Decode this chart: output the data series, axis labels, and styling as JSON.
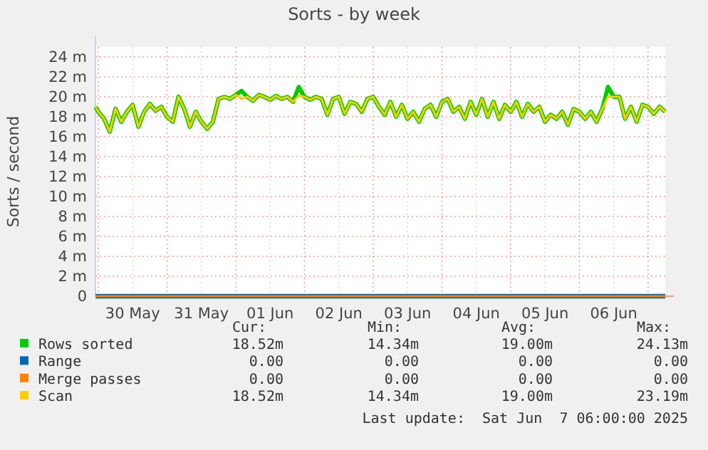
{
  "chart_data": {
    "type": "line",
    "title": "Sorts - by week",
    "ylabel": "Sorts / second",
    "x": [
      "2025-05-29T23:00",
      "2025-05-30T00:00",
      "2025-05-30T02:00",
      "2025-05-30T04:00",
      "2025-05-30T06:00",
      "2025-05-30T08:00",
      "2025-05-30T10:00",
      "2025-05-30T12:00",
      "2025-05-30T14:00",
      "2025-05-30T16:00",
      "2025-05-30T18:00",
      "2025-05-30T20:00",
      "2025-05-30T22:00",
      "2025-05-31T00:00",
      "2025-05-31T02:00",
      "2025-05-31T04:00",
      "2025-05-31T06:00",
      "2025-05-31T08:00",
      "2025-05-31T10:00",
      "2025-05-31T12:00",
      "2025-05-31T14:00",
      "2025-05-31T16:00",
      "2025-05-31T18:00",
      "2025-05-31T20:00",
      "2025-05-31T22:00",
      "2025-06-01T00:00",
      "2025-06-01T02:00",
      "2025-06-01T04:00",
      "2025-06-01T06:00",
      "2025-06-01T08:00",
      "2025-06-01T10:00",
      "2025-06-01T12:00",
      "2025-06-01T14:00",
      "2025-06-01T16:00",
      "2025-06-01T18:00",
      "2025-06-01T20:00",
      "2025-06-01T22:00",
      "2025-06-02T00:00",
      "2025-06-02T02:00",
      "2025-06-02T04:00",
      "2025-06-02T06:00",
      "2025-06-02T08:00",
      "2025-06-02T10:00",
      "2025-06-02T12:00",
      "2025-06-02T14:00",
      "2025-06-02T16:00",
      "2025-06-02T18:00",
      "2025-06-02T20:00",
      "2025-06-02T22:00",
      "2025-06-03T00:00",
      "2025-06-03T02:00",
      "2025-06-03T04:00",
      "2025-06-03T06:00",
      "2025-06-03T08:00",
      "2025-06-03T10:00",
      "2025-06-03T12:00",
      "2025-06-03T14:00",
      "2025-06-03T16:00",
      "2025-06-03T18:00",
      "2025-06-03T20:00",
      "2025-06-03T22:00",
      "2025-06-04T00:00",
      "2025-06-04T02:00",
      "2025-06-04T04:00",
      "2025-06-04T06:00",
      "2025-06-04T08:00",
      "2025-06-04T10:00",
      "2025-06-04T12:00",
      "2025-06-04T14:00",
      "2025-06-04T16:00",
      "2025-06-04T18:00",
      "2025-06-04T20:00",
      "2025-06-04T22:00",
      "2025-06-05T00:00",
      "2025-06-05T02:00",
      "2025-06-05T04:00",
      "2025-06-05T06:00",
      "2025-06-05T08:00",
      "2025-06-05T10:00",
      "2025-06-05T12:00",
      "2025-06-05T14:00",
      "2025-06-05T16:00",
      "2025-06-05T18:00",
      "2025-06-05T20:00",
      "2025-06-05T22:00",
      "2025-06-06T00:00",
      "2025-06-06T02:00",
      "2025-06-06T04:00",
      "2025-06-06T06:00",
      "2025-06-06T08:00",
      "2025-06-06T10:00",
      "2025-06-06T12:00",
      "2025-06-06T14:00",
      "2025-06-06T16:00",
      "2025-06-06T18:00",
      "2025-06-06T20:00",
      "2025-06-06T22:00",
      "2025-06-07T00:00",
      "2025-06-07T02:00",
      "2025-06-07T04:00",
      "2025-06-07T06:00"
    ],
    "series": [
      {
        "name": "Rows sorted",
        "color": "#00cc00",
        "values": [
          19,
          18.5,
          17.8,
          16.5,
          18.8,
          17.5,
          18.5,
          19.2,
          17,
          18.5,
          19.3,
          18.6,
          19,
          18,
          17.5,
          20,
          18.8,
          17,
          18.5,
          17.5,
          16.8,
          17.5,
          19.8,
          20,
          19.8,
          20.2,
          20.6,
          20,
          19.6,
          20.2,
          20,
          19.7,
          20.1,
          19.8,
          20,
          19.5,
          21,
          20,
          19.7,
          20,
          19.8,
          18.2,
          19.8,
          20,
          18.3,
          19.5,
          19.3,
          18.5,
          19.8,
          20,
          19,
          18.2,
          19.5,
          18,
          19.2,
          17.8,
          18.5,
          17.5,
          18.8,
          19.2,
          18,
          19.5,
          19.8,
          18.5,
          19,
          17.8,
          19.5,
          18.2,
          19.8,
          18,
          19.5,
          17.8,
          19.2,
          18.5,
          19.5,
          18,
          19.3,
          18.5,
          19,
          17.5,
          18.2,
          17.8,
          18.5,
          17.2,
          18.8,
          18.5,
          17.8,
          18.5,
          17.5,
          18.8,
          21,
          20,
          20,
          17.8,
          19,
          17.5,
          19.2,
          19,
          18.3,
          19,
          18.5
        ]
      },
      {
        "name": "Range",
        "color": "#0066b3",
        "values": [
          0,
          0,
          0,
          0,
          0,
          0,
          0,
          0,
          0,
          0,
          0,
          0,
          0,
          0,
          0,
          0,
          0,
          0,
          0,
          0,
          0,
          0,
          0,
          0,
          0,
          0,
          0,
          0,
          0,
          0,
          0,
          0,
          0,
          0,
          0,
          0,
          0,
          0,
          0,
          0,
          0,
          0,
          0,
          0,
          0,
          0,
          0,
          0,
          0,
          0,
          0,
          0,
          0,
          0,
          0,
          0,
          0,
          0,
          0,
          0,
          0,
          0,
          0,
          0,
          0,
          0,
          0,
          0,
          0,
          0,
          0,
          0,
          0,
          0,
          0,
          0,
          0,
          0,
          0,
          0,
          0,
          0,
          0,
          0,
          0,
          0,
          0,
          0,
          0,
          0,
          0,
          0,
          0,
          0,
          0,
          0,
          0,
          0,
          0,
          0,
          0
        ]
      },
      {
        "name": "Merge passes",
        "color": "#ff8000",
        "values": [
          0,
          0,
          0,
          0,
          0,
          0,
          0,
          0,
          0,
          0,
          0,
          0,
          0,
          0,
          0,
          0,
          0,
          0,
          0,
          0,
          0,
          0,
          0,
          0,
          0,
          0,
          0,
          0,
          0,
          0,
          0,
          0,
          0,
          0,
          0,
          0,
          0,
          0,
          0,
          0,
          0,
          0,
          0,
          0,
          0,
          0,
          0,
          0,
          0,
          0,
          0,
          0,
          0,
          0,
          0,
          0,
          0,
          0,
          0,
          0,
          0,
          0,
          0,
          0,
          0,
          0,
          0,
          0,
          0,
          0,
          0,
          0,
          0,
          0,
          0,
          0,
          0,
          0,
          0,
          0,
          0,
          0,
          0,
          0,
          0,
          0,
          0,
          0,
          0,
          0,
          0,
          0,
          0,
          0,
          0,
          0,
          0,
          0,
          0,
          0,
          0
        ]
      },
      {
        "name": "Scan",
        "color": "#ffcc00",
        "values": [
          19,
          18.5,
          17.8,
          16.5,
          18.8,
          17.5,
          18.5,
          19.2,
          17,
          18.5,
          19.3,
          18.6,
          19,
          18,
          17.5,
          20,
          18.8,
          17,
          18.5,
          17.5,
          16.8,
          17.5,
          19.8,
          20,
          19.8,
          20.2,
          19.8,
          20,
          19.6,
          20.2,
          20,
          19.7,
          20.1,
          19.8,
          20,
          19.5,
          20.1,
          20,
          19.7,
          20,
          19.8,
          18.2,
          19.8,
          20,
          18.3,
          19.5,
          19.3,
          18.5,
          19.8,
          20,
          19,
          18.2,
          19.5,
          18,
          19.2,
          17.8,
          18.5,
          17.5,
          18.8,
          19.2,
          18,
          19.5,
          19.8,
          18.5,
          19,
          17.8,
          19.5,
          18.2,
          19.8,
          18,
          19.5,
          17.8,
          19.2,
          18.5,
          19.5,
          18,
          19.3,
          18.5,
          19,
          17.5,
          18.2,
          17.8,
          18.5,
          17.2,
          18.8,
          18.5,
          17.8,
          18.5,
          17.5,
          18.8,
          20,
          20,
          20,
          17.8,
          19,
          17.5,
          19.2,
          19,
          18.3,
          19,
          18.5
        ]
      }
    ],
    "xlim": [
      "2025-05-29T23:00",
      "2025-06-07T06:00"
    ],
    "xticks": [
      {
        "value": "2025-05-30T00:00",
        "label": null
      },
      {
        "value": "2025-05-30T12:00",
        "label": "30 May"
      },
      {
        "value": "2025-05-31T00:00",
        "label": null
      },
      {
        "value": "2025-05-31T12:00",
        "label": "31 May"
      },
      {
        "value": "2025-06-01T00:00",
        "label": null
      },
      {
        "value": "2025-06-01T12:00",
        "label": "01 Jun"
      },
      {
        "value": "2025-06-02T00:00",
        "label": null
      },
      {
        "value": "2025-06-02T12:00",
        "label": "02 Jun"
      },
      {
        "value": "2025-06-03T00:00",
        "label": null
      },
      {
        "value": "2025-06-03T12:00",
        "label": "03 Jun"
      },
      {
        "value": "2025-06-04T00:00",
        "label": null
      },
      {
        "value": "2025-06-04T12:00",
        "label": "04 Jun"
      },
      {
        "value": "2025-06-05T00:00",
        "label": null
      },
      {
        "value": "2025-06-05T12:00",
        "label": "05 Jun"
      },
      {
        "value": "2025-06-06T00:00",
        "label": null
      },
      {
        "value": "2025-06-06T12:00",
        "label": "06 Jun"
      },
      {
        "value": "2025-06-07T00:00",
        "label": null
      }
    ],
    "ylim": [
      0,
      25
    ],
    "yticks": [
      0,
      {
        "value": 2,
        "label": "2 m"
      },
      {
        "value": 4,
        "label": "4 m"
      },
      {
        "value": 6,
        "label": "6 m"
      },
      {
        "value": 8,
        "label": "8 m"
      },
      {
        "value": 10,
        "label": "10 m"
      },
      {
        "value": 12,
        "label": "12 m"
      },
      {
        "value": 14,
        "label": "14 m"
      },
      {
        "value": 16,
        "label": "16 m"
      },
      {
        "value": 18,
        "label": "18 m"
      },
      {
        "value": 20,
        "label": "20 m"
      },
      {
        "value": 22,
        "label": "22 m"
      },
      {
        "value": 24,
        "label": "24 m"
      }
    ],
    "grid": true,
    "legend": "bottom",
    "line_style": "solid",
    "annotations": [
      "Cur:",
      "Min:",
      "Avg:",
      "Max:",
      "18.52m",
      "14.34m",
      "19.00m",
      "24.13m",
      "0.00",
      "0.00",
      "0.00",
      "0.00",
      "0.00",
      "0.00",
      "0.00",
      "0.00",
      "18.52m",
      "14.34m",
      "19.00m",
      "23.19m",
      "Last update:  Sat Jun  7 06:00:00 2025"
    ]
  }
}
